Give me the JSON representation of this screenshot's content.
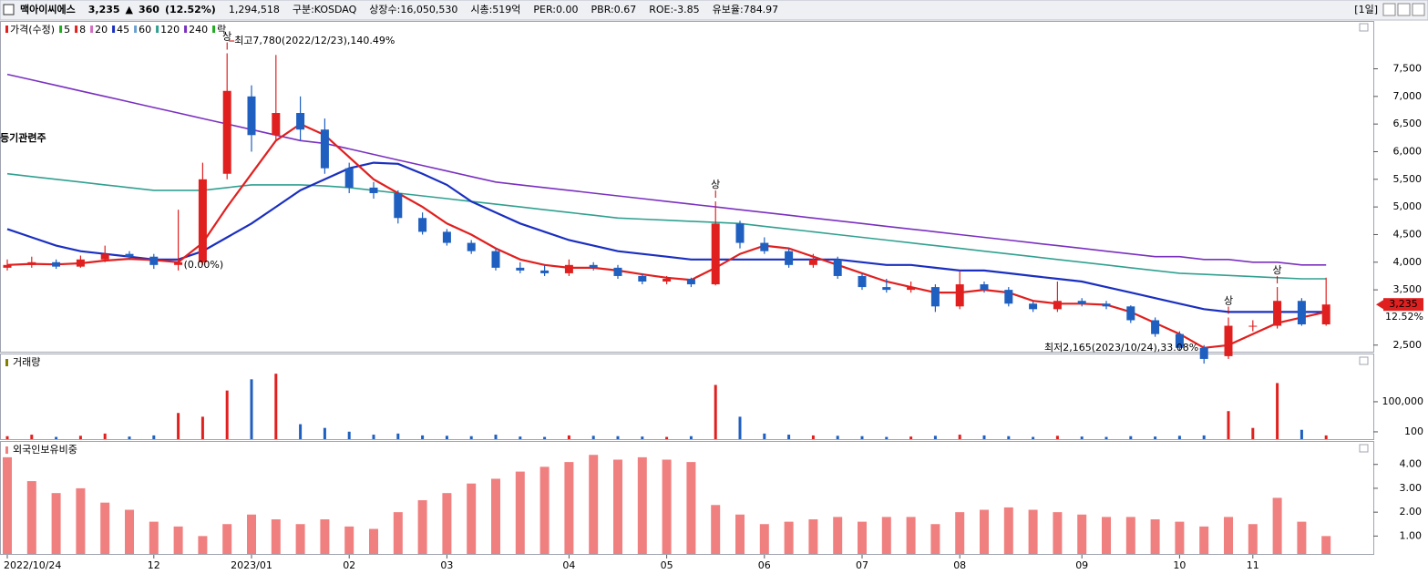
{
  "header": [
    {
      "text": "맥아이씨에스",
      "color": "#000000"
    },
    {
      "text": "3,235",
      "color": "#e0201f"
    },
    {
      "text": "▲",
      "color": "#e0201f"
    },
    {
      "text": "360",
      "color": "#e0201f"
    },
    {
      "text": "(12.52%)",
      "color": "#e0201f"
    },
    {
      "text": "1,294,518",
      "color": "#000000"
    },
    {
      "text": "구분:KOSDAQ",
      "color": "#000000"
    },
    {
      "text": "상장수:16,050,530",
      "color": "#000000"
    },
    {
      "text": "시총:519억",
      "color": "#000000"
    },
    {
      "text": "PER:0.00",
      "color": "#000000"
    },
    {
      "text": "PBR:0.67",
      "color": "#000000"
    },
    {
      "text": "ROE:-3.85",
      "color": "#000000"
    },
    {
      "text": "유보율:784.97",
      "color": "#000000"
    }
  ],
  "period": "[1일]",
  "chart_data": [
    {
      "type": "candlestick",
      "legend": [
        {
          "name": "가격(수정)",
          "color": "#e0201f"
        },
        {
          "name": "5",
          "color": "#22aa22"
        },
        {
          "name": "8",
          "color": "#e0201f"
        },
        {
          "name": "20",
          "color": "#d070c0"
        },
        {
          "name": "45",
          "color": "#1a2fc0"
        },
        {
          "name": "60",
          "color": "#6aa0d0"
        },
        {
          "name": "120",
          "color": "#30a090"
        },
        {
          "name": "240",
          "color": "#7a30c0"
        },
        {
          "name": "락",
          "color": "#22aa22"
        }
      ],
      "categories": [
        "2022/10/24",
        null,
        null,
        null,
        null,
        null,
        "12",
        null,
        null,
        null,
        "2023/01",
        null,
        null,
        null,
        "02",
        null,
        null,
        null,
        "03",
        null,
        null,
        null,
        null,
        "04",
        null,
        null,
        null,
        "05",
        null,
        null,
        null,
        "06",
        null,
        null,
        null,
        "07",
        null,
        null,
        null,
        "08",
        null,
        null,
        null,
        null,
        "09",
        null,
        null,
        null,
        "10",
        null,
        null,
        "11",
        null,
        null,
        null
      ],
      "open": [
        3900,
        3950,
        4000,
        3920,
        4050,
        4150,
        4100,
        3950,
        4000,
        5600,
        7000,
        6300,
        6700,
        6400,
        5700,
        5350,
        5250,
        4800,
        4550,
        4350,
        4200,
        3900,
        3850,
        3800,
        3950,
        3900,
        3750,
        3650,
        3700,
        3600,
        4700,
        4350,
        4200,
        3950,
        4050,
        3750,
        3550,
        3500,
        3550,
        3200,
        3600,
        3500,
        3250,
        3150,
        3300,
        3250,
        3200,
        2950,
        2700,
        2450,
        2300,
        2850,
        2850,
        3300,
        2875
      ],
      "high": [
        4050,
        4100,
        4050,
        4120,
        4300,
        4200,
        4150,
        4950,
        5800,
        7780,
        7200,
        7750,
        7000,
        6600,
        5800,
        5450,
        5300,
        4900,
        4600,
        4400,
        4250,
        4000,
        3950,
        4050,
        4000,
        3950,
        3800,
        3750,
        3720,
        5100,
        4750,
        4450,
        4250,
        4150,
        4100,
        3800,
        3700,
        3650,
        3600,
        3850,
        3650,
        3550,
        3300,
        3650,
        3350,
        3300,
        3220,
        3000,
        2750,
        2500,
        3000,
        2950,
        3550,
        3350,
        3720
      ],
      "low": [
        3850,
        3900,
        3880,
        3900,
        4000,
        4050,
        3880,
        3850,
        3950,
        5500,
        6000,
        6200,
        6200,
        5600,
        5250,
        5150,
        4700,
        4500,
        4300,
        4150,
        3850,
        3800,
        3750,
        3750,
        3850,
        3700,
        3600,
        3600,
        3550,
        3580,
        4250,
        4150,
        3900,
        3900,
        3700,
        3500,
        3450,
        3450,
        3100,
        3150,
        3450,
        3200,
        3100,
        3100,
        3200,
        3150,
        2900,
        2650,
        2400,
        2165,
        2250,
        2750,
        2800,
        2850,
        2850
      ],
      "close": [
        3950,
        4000,
        3920,
        4050,
        4150,
        4100,
        3950,
        4000,
        5500,
        7100,
        6300,
        6700,
        6400,
        5700,
        5350,
        5250,
        4800,
        4550,
        4350,
        4200,
        3900,
        3850,
        3800,
        3950,
        3900,
        3750,
        3650,
        3700,
        3600,
        4700,
        4350,
        4200,
        3950,
        4050,
        3750,
        3550,
        3500,
        3550,
        3200,
        3600,
        3500,
        3250,
        3150,
        3300,
        3250,
        3200,
        2950,
        2700,
        2450,
        2250,
        2850,
        2850,
        3300,
        2875,
        3235
      ],
      "up_color": "#e0201f",
      "down_color": "#1f5fbf",
      "series": [
        {
          "name": "240",
          "color": "#7a30c0",
          "values": [
            7400,
            7300,
            7200,
            7100,
            7000,
            6900,
            6800,
            6700,
            6600,
            6500,
            6400,
            6300,
            6200,
            6150,
            6050,
            5950,
            5850,
            5750,
            5650,
            5550,
            5450,
            5400,
            5350,
            5300,
            5250,
            5200,
            5150,
            5100,
            5050,
            5000,
            4950,
            4900,
            4850,
            4800,
            4750,
            4700,
            4650,
            4600,
            4550,
            4500,
            4450,
            4400,
            4350,
            4300,
            4250,
            4200,
            4150,
            4100,
            4100,
            4050,
            4050,
            4000,
            4000,
            3950,
            3950
          ]
        },
        {
          "name": "120",
          "color": "#30a090",
          "values": [
            5600,
            5550,
            5500,
            5450,
            5400,
            5350,
            5300,
            5300,
            5300,
            5350,
            5400,
            5400,
            5400,
            5380,
            5350,
            5300,
            5250,
            5200,
            5150,
            5100,
            5050,
            5000,
            4950,
            4900,
            4850,
            4800,
            4780,
            4760,
            4740,
            4720,
            4700,
            4650,
            4600,
            4550,
            4500,
            4450,
            4400,
            4350,
            4300,
            4250,
            4200,
            4150,
            4100,
            4050,
            4000,
            3950,
            3900,
            3850,
            3800,
            3780,
            3760,
            3740,
            3720,
            3700,
            3700
          ]
        },
        {
          "name": "45",
          "color": "#1a2fc0",
          "values": [
            4600,
            4450,
            4300,
            4200,
            4150,
            4100,
            4050,
            4050,
            4200,
            4450,
            4700,
            5000,
            5300,
            5500,
            5700,
            5800,
            5780,
            5600,
            5400,
            5100,
            4900,
            4700,
            4550,
            4400,
            4300,
            4200,
            4150,
            4100,
            4050,
            4050,
            4050,
            4050,
            4050,
            4050,
            4050,
            4000,
            3950,
            3950,
            3900,
            3850,
            3850,
            3800,
            3750,
            3700,
            3650,
            3550,
            3450,
            3350,
            3250,
            3150,
            3100,
            3100,
            3100,
            3100,
            3100
          ]
        },
        {
          "name": "8",
          "color": "#e0201f",
          "values": [
            3950,
            3970,
            3960,
            3980,
            4030,
            4060,
            4040,
            4000,
            4350,
            5000,
            5600,
            6200,
            6500,
            6300,
            5900,
            5500,
            5250,
            5000,
            4700,
            4500,
            4250,
            4050,
            3950,
            3900,
            3900,
            3850,
            3780,
            3720,
            3680,
            3900,
            4150,
            4300,
            4250,
            4100,
            3950,
            3800,
            3650,
            3550,
            3450,
            3450,
            3500,
            3450,
            3300,
            3250,
            3250,
            3230,
            3100,
            2900,
            2700,
            2450,
            2500,
            2700,
            2900,
            3000,
            3100
          ]
        }
      ],
      "ylim": [
        2150,
        8250
      ],
      "yticks": [
        {
          "value": 2500,
          "label": "2,500"
        },
        {
          "value": 3500,
          "label": "3,500"
        },
        {
          "value": 4000,
          "label": "4,000"
        },
        {
          "value": 4500,
          "label": "4,500"
        },
        {
          "value": 5000,
          "label": "5,000"
        },
        {
          "value": 5500,
          "label": "5,500"
        },
        {
          "value": 6000,
          "label": "6,000"
        },
        {
          "value": 6500,
          "label": "6,500"
        },
        {
          "value": 7000,
          "label": "7,000"
        },
        {
          "value": 7500,
          "label": "7,500"
        }
      ],
      "current": {
        "value": 3235,
        "label": "3,235",
        "change": "12.52%"
      },
      "annotations": [
        "최고7,780(2022/12/23),140.49%",
        "최저2,165(2023/10/24),33.08%",
        "(0.00%)",
        "상",
        "상",
        "상",
        "상",
        "등기관련주"
      ]
    },
    {
      "type": "bar",
      "title": "거래량",
      "values": [
        8000,
        12000,
        6000,
        9000,
        15000,
        7000,
        10000,
        70000,
        60000,
        130000,
        160000,
        175000,
        40000,
        30000,
        20000,
        12000,
        15000,
        10000,
        9000,
        8000,
        12000,
        7000,
        6000,
        10000,
        9000,
        8000,
        7000,
        6000,
        8000,
        145000,
        60000,
        15000,
        12000,
        10000,
        9000,
        8000,
        6000,
        7000,
        9000,
        12000,
        10000,
        8000,
        6000,
        9000,
        7000,
        6000,
        8000,
        7000,
        9000,
        10000,
        75000,
        30000,
        150000,
        25000,
        10000
      ],
      "ylim": [
        0,
        190000
      ],
      "yticks": [
        100,
        {
          "value": 100000,
          "label": "100,000"
        }
      ]
    },
    {
      "type": "bar",
      "title": "외국인보유비중",
      "color": "#f08080",
      "values": [
        4.3,
        3.3,
        2.8,
        3.0,
        2.4,
        2.1,
        1.6,
        1.4,
        1.0,
        1.5,
        1.9,
        1.7,
        1.5,
        1.7,
        1.4,
        1.3,
        2.0,
        2.5,
        2.8,
        3.2,
        3.4,
        3.7,
        3.9,
        4.1,
        4.4,
        4.2,
        4.3,
        4.2,
        4.1,
        2.3,
        1.9,
        1.5,
        1.6,
        1.7,
        1.8,
        1.6,
        1.8,
        1.8,
        1.5,
        2.0,
        2.1,
        2.2,
        2.1,
        2.0,
        1.9,
        1.8,
        1.8,
        1.7,
        1.6,
        1.4,
        1.8,
        1.5,
        2.6,
        1.6,
        1.0
      ],
      "ylim": [
        0.25,
        4.6
      ],
      "yticks": [
        {
          "value": 1,
          "label": "1.00"
        },
        {
          "value": 2,
          "label": "2.00"
        },
        {
          "value": 3,
          "label": "3.00"
        },
        {
          "value": 4,
          "label": "4.00"
        }
      ]
    }
  ]
}
